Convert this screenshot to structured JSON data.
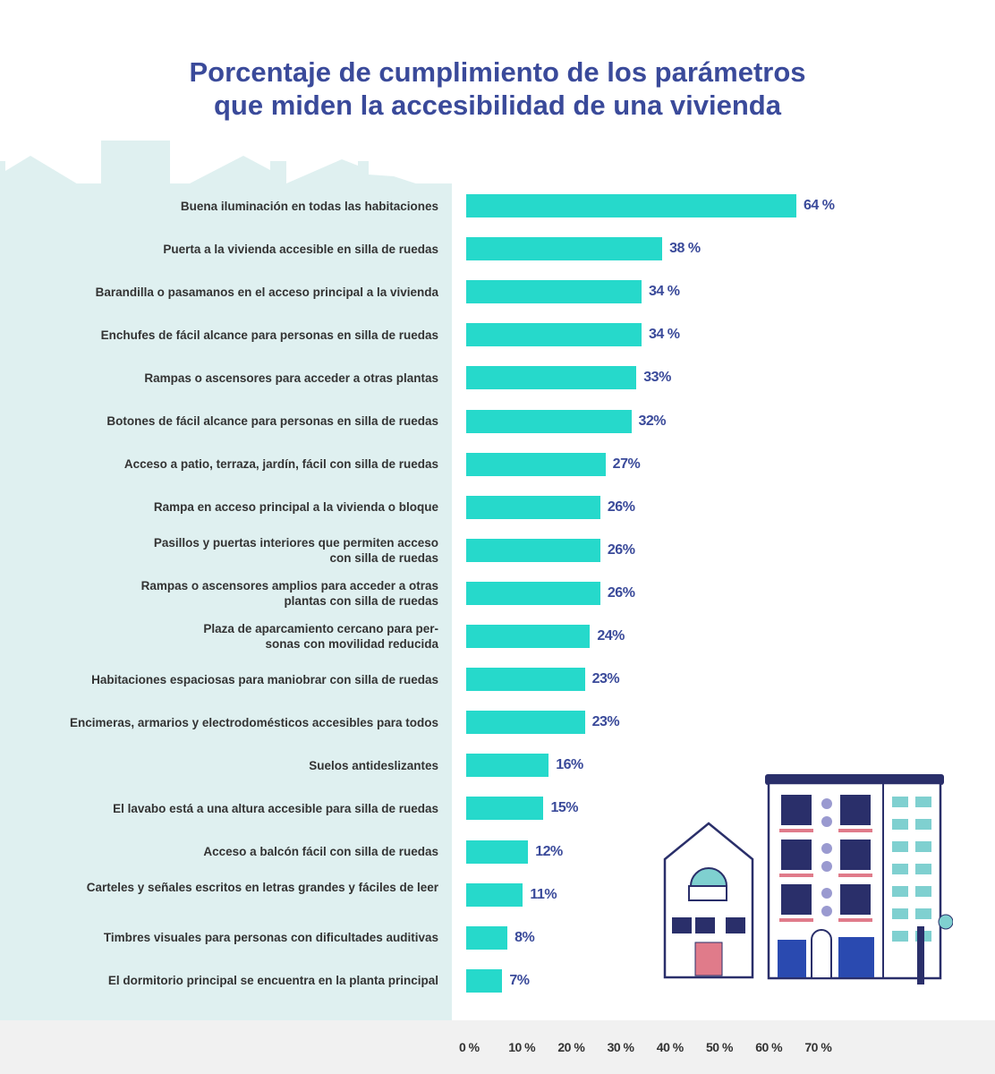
{
  "chart_data": {
    "type": "bar",
    "orientation": "horizontal",
    "title": "Porcentaje de cumplimiento de los parámetros que miden la accesibilidad de una vivienda",
    "title_lines": [
      "Porcentaje de cumplimiento de los parámetros",
      "que miden la accesibilidad de una vivienda"
    ],
    "categories": [
      "Buena iluminación en todas las habitaciones",
      "Puerta a la vivienda accesible en silla de ruedas",
      "Barandilla o pasamanos en el acceso principal a la vivienda",
      "Enchufes de fácil alcance para personas en silla de ruedas",
      "Rampas o ascensores para acceder a otras plantas",
      "Botones de fácil alcance para personas en silla de ruedas",
      "Acceso a patio, terraza, jardín, fácil con silla de ruedas",
      "Rampa en acceso principal a la vivienda o bloque",
      "Pasillos y puertas interiores que permiten acceso con silla de ruedas",
      "Rampas o ascensores amplios para acceder a otras plantas con silla de ruedas",
      "Plaza de aparcamiento cercano para personas con movilidad reducida",
      "Habitaciones espaciosas para maniobrar con silla de ruedas",
      "Encimeras, armarios y electrodomésticos accesibles para todos",
      "Suelos antideslizantes",
      "El lavabo está a una altura accesible para silla de ruedas",
      "Acceso a balcón  fácil con silla de ruedas",
      "Carteles y señales escritos en letras grandes y fáciles de leer",
      "Timbres visuales para personas con dificultades auditivas",
      "El dormitorio principal se encuentra en la planta principal"
    ],
    "values": [
      64,
      38,
      34,
      34,
      33,
      32,
      27,
      26,
      26,
      26,
      24,
      23,
      23,
      16,
      15,
      12,
      11,
      8,
      7
    ],
    "data_labels": [
      "64 %",
      "38 %",
      "34 %",
      "34 %",
      "33%",
      "32%",
      "27%",
      "26%",
      "26%",
      "26%",
      "24%",
      "23%",
      "23%",
      "16%",
      "15%",
      "12%",
      "11%",
      "8%",
      "7%"
    ],
    "xticks": [
      "0 %",
      "10 %",
      "20 %",
      "30 %",
      "40 %",
      "50 %",
      "60 %",
      "70 %"
    ],
    "xlim": [
      0,
      70
    ],
    "bar_color": "#26d9cb",
    "label_color": "#3a4a9a",
    "grid": false
  }
}
